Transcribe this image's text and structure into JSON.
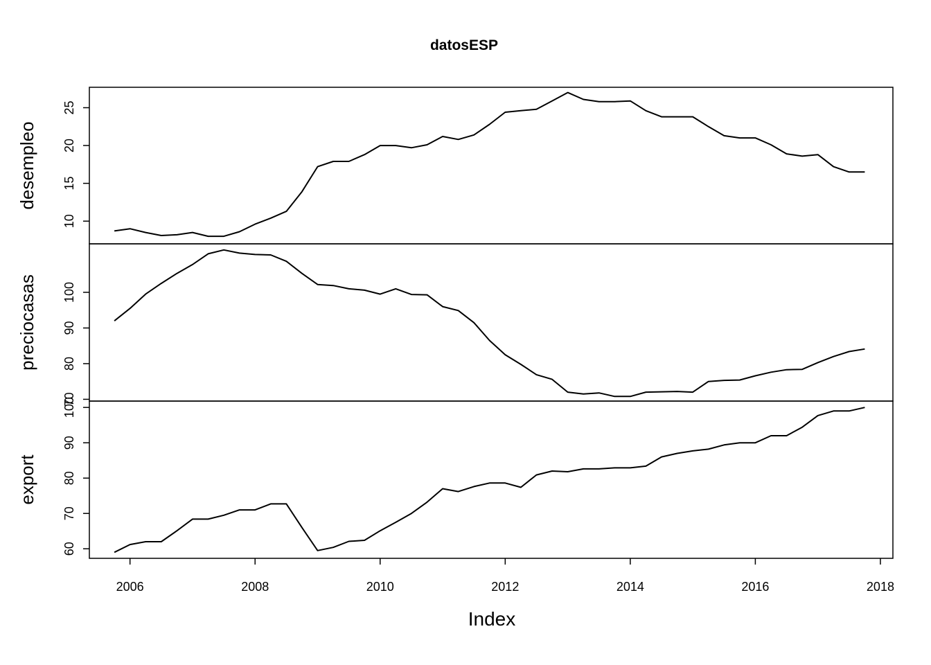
{
  "chart_data": {
    "type": "line",
    "title": "datosESP",
    "xlabel": "Index",
    "xlim": [
      2005.35,
      2018.2
    ],
    "x_ticks": [
      2006,
      2008,
      2010,
      2012,
      2014,
      2016,
      2018
    ],
    "x_tick_labels": [
      "2006",
      "2008",
      "2010",
      "2012",
      "2014",
      "2016",
      "2018"
    ],
    "x": [
      2005.75,
      2006.0,
      2006.25,
      2006.5,
      2006.75,
      2007.0,
      2007.25,
      2007.5,
      2007.75,
      2008.0,
      2008.25,
      2008.5,
      2008.75,
      2009.0,
      2009.25,
      2009.5,
      2009.75,
      2010.0,
      2010.25,
      2010.5,
      2010.75,
      2011.0,
      2011.25,
      2011.5,
      2011.75,
      2012.0,
      2012.25,
      2012.5,
      2012.75,
      2013.0,
      2013.25,
      2013.5,
      2013.75,
      2014.0,
      2014.25,
      2014.5,
      2014.75,
      2015.0,
      2015.25,
      2015.5,
      2015.75,
      2016.0,
      2016.25,
      2016.5,
      2016.75,
      2017.0,
      2017.25,
      2017.5,
      2017.75
    ],
    "series": [
      {
        "name": "desempleo",
        "ylim": [
          7.0,
          27.7
        ],
        "y_ticks": [
          10,
          15,
          20,
          25
        ],
        "y_tick_labels": [
          "10",
          "15",
          "20",
          "25"
        ],
        "values": [
          8.7,
          9.0,
          8.5,
          8.1,
          8.2,
          8.5,
          8.0,
          8.0,
          8.6,
          9.6,
          10.4,
          11.3,
          13.9,
          17.2,
          17.9,
          17.9,
          18.8,
          20.0,
          20.0,
          19.7,
          20.1,
          21.2,
          20.8,
          21.4,
          22.8,
          24.4,
          24.6,
          24.8,
          25.9,
          27.0,
          26.1,
          25.8,
          25.8,
          25.9,
          24.6,
          23.8,
          23.8,
          23.8,
          22.5,
          21.3,
          21.0,
          21.0,
          20.1,
          18.9,
          18.6,
          18.8,
          17.2,
          16.5,
          16.5
        ]
      },
      {
        "name": "preciocasas",
        "ylim": [
          69.5,
          113.6
        ],
        "y_ticks": [
          70,
          80,
          90,
          100
        ],
        "y_tick_labels": [
          "70",
          "80",
          "90",
          "100"
        ],
        "values": [
          92.0,
          95.5,
          99.5,
          102.5,
          105.3,
          107.8,
          110.8,
          111.9,
          111.0,
          110.6,
          110.5,
          108.7,
          105.3,
          102.2,
          101.9,
          101.0,
          100.6,
          99.5,
          101.0,
          99.4,
          99.3,
          96.0,
          94.9,
          91.5,
          86.5,
          82.5,
          79.8,
          76.9,
          75.6,
          72.0,
          71.5,
          71.8,
          70.8,
          70.8,
          72.0,
          72.1,
          72.2,
          72.0,
          75.0,
          75.3,
          75.4,
          76.6,
          77.6,
          78.3,
          78.4,
          80.3,
          82.0,
          83.4,
          84.1
        ]
      },
      {
        "name": "export",
        "ylim": [
          57.3,
          101.8
        ],
        "y_ticks": [
          60,
          70,
          80,
          90,
          100
        ],
        "y_tick_labels": [
          "60",
          "70",
          "80",
          "90",
          "100"
        ],
        "values": [
          59.0,
          61.2,
          62.0,
          62.0,
          65.1,
          68.4,
          68.4,
          69.5,
          71.0,
          71.0,
          72.7,
          72.7,
          66.0,
          59.5,
          60.4,
          62.1,
          62.4,
          65.1,
          67.5,
          70.0,
          73.2,
          77.0,
          76.2,
          77.6,
          78.6,
          78.6,
          77.4,
          80.9,
          82.0,
          81.8,
          82.6,
          82.6,
          82.9,
          82.9,
          83.4,
          86.0,
          87.0,
          87.7,
          88.2,
          89.4,
          90.0,
          90.0,
          92.0,
          92.0,
          94.4,
          97.7,
          99.0,
          99.0,
          100.0
        ]
      }
    ]
  }
}
